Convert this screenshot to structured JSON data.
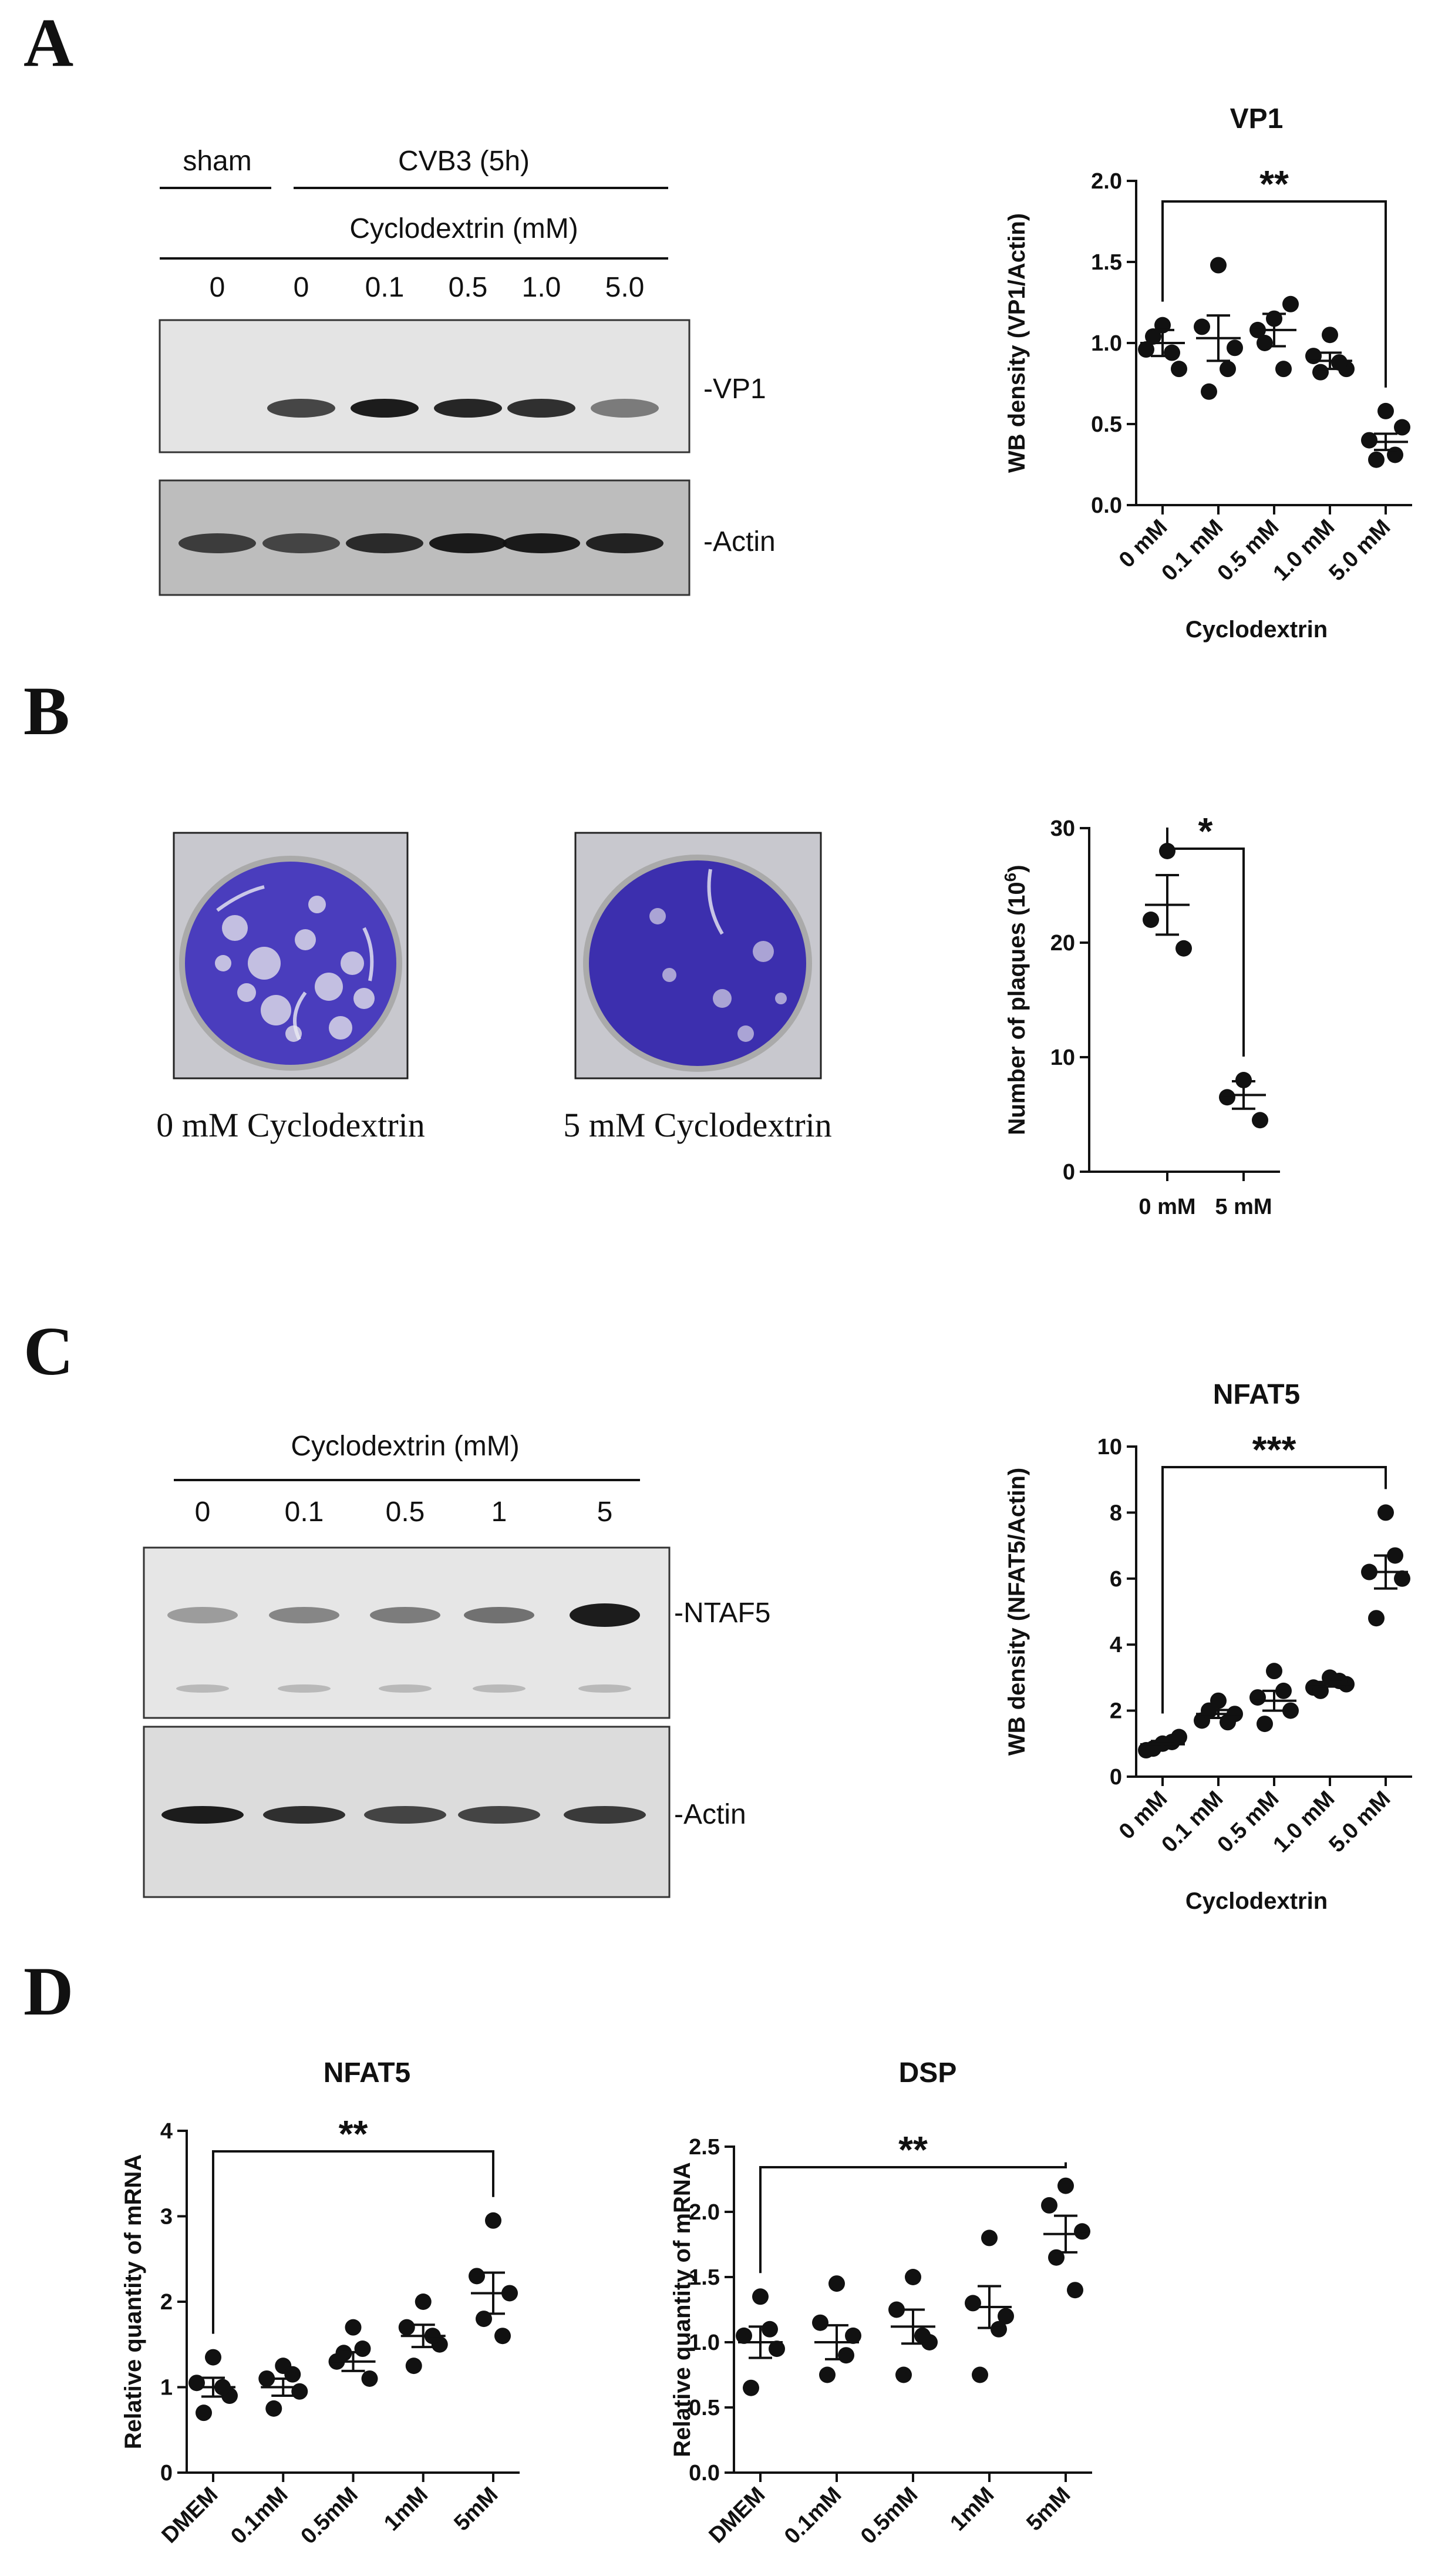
{
  "panels": {
    "A": "A",
    "B": "B",
    "C": "C",
    "D": "D"
  },
  "panel_a": {
    "group_sham": "sham",
    "group_cvb3": "CVB3 (5h)",
    "treatment": "Cyclodextrin (mM)",
    "lanes": [
      "0",
      "0",
      "0.1",
      "0.5",
      "1.0",
      "5.0"
    ],
    "band_vp1": "-VP1",
    "band_actin": "-Actin"
  },
  "panel_b": {
    "photo_left_caption": "0 mM Cyclodextrin",
    "photo_right_caption": "5 mM Cyclodextrin"
  },
  "panel_c": {
    "treatment": "Cyclodextrin (mM)",
    "lanes": [
      "0",
      "0.1",
      "0.5",
      "1",
      "5"
    ],
    "band_ntaf5": "-NTAF5",
    "band_actin": "-Actin"
  },
  "chart_data": [
    {
      "id": "vp1",
      "type": "scatter",
      "title": "VP1",
      "xlabel": "Cyclodextrin",
      "ylabel": "WB density (VP1/Actin)",
      "categories": [
        "0 mM",
        "0.1 mM",
        "0.5 mM",
        "1.0 mM",
        "5.0 mM"
      ],
      "ylim": [
        0,
        2.0
      ],
      "yticks": [
        "0.0",
        "0.5",
        "1.0",
        "1.5",
        "2.0"
      ],
      "points": [
        [
          1.11,
          0.96,
          0.84,
          1.04,
          0.94
        ],
        [
          1.48,
          1.1,
          0.97,
          0.7,
          0.84
        ],
        [
          1.15,
          1.08,
          1.24,
          1.0,
          0.84
        ],
        [
          1.05,
          0.92,
          0.84,
          0.82,
          0.88
        ],
        [
          0.58,
          0.4,
          0.48,
          0.28,
          0.31
        ]
      ],
      "means": [
        1.0,
        1.03,
        1.08,
        0.89,
        0.39
      ],
      "sem": [
        0.08,
        0.14,
        0.1,
        0.05,
        0.05
      ],
      "annotation": {
        "text": "**",
        "from": 0,
        "to": 4
      }
    },
    {
      "id": "plaques",
      "type": "scatter",
      "title": "",
      "xlabel": "",
      "ylabel": "Number of plaques (10",
      "ylabel_sup": "6",
      "ylabel_tail": ")",
      "categories": [
        "0 mM",
        "5 mM"
      ],
      "ylim": [
        0,
        30
      ],
      "yticks": [
        "0",
        "10",
        "20",
        "30"
      ],
      "points": [
        [
          28,
          22,
          19.5
        ],
        [
          8,
          6.5,
          4.5
        ]
      ],
      "means": [
        23.3,
        6.7
      ],
      "sem": [
        2.6,
        1.2
      ],
      "annotation": {
        "text": "*",
        "from": 0,
        "to": 1
      }
    },
    {
      "id": "nfat5_wb",
      "type": "scatter",
      "title": "NFAT5",
      "xlabel": "Cyclodextrin",
      "ylabel": "WB density (NFAT5/Actin)",
      "categories": [
        "0 mM",
        "0.1 mM",
        "0.5 mM",
        "1.0 mM",
        "5.0 mM"
      ],
      "ylim": [
        0,
        10
      ],
      "yticks": [
        "0",
        "2",
        "4",
        "6",
        "8",
        "10"
      ],
      "points": [
        [
          1.0,
          0.8,
          1.2,
          0.85,
          1.05
        ],
        [
          2.3,
          1.7,
          1.9,
          2.0,
          1.65
        ],
        [
          3.2,
          2.4,
          2.0,
          1.6,
          2.6
        ],
        [
          3.0,
          2.7,
          2.8,
          2.6,
          2.9
        ],
        [
          8.0,
          6.2,
          6.0,
          4.8,
          6.7
        ]
      ],
      "means": [
        0.98,
        1.9,
        2.3,
        2.8,
        6.2
      ],
      "sem": [
        0.1,
        0.12,
        0.3,
        0.07,
        0.5
      ],
      "annotation": {
        "text": "***",
        "from": 0,
        "to": 4
      }
    },
    {
      "id": "nfat5_mrna",
      "type": "scatter",
      "title": "NFAT5",
      "xlabel": "",
      "ylabel": "Relative quantity of mRNA",
      "categories": [
        "DMEM",
        "0.1mM",
        "0.5mM",
        "1mM",
        "5mM"
      ],
      "ylim": [
        0,
        4
      ],
      "yticks": [
        "0",
        "1",
        "2",
        "3",
        "4"
      ],
      "points": [
        [
          1.35,
          1.05,
          0.9,
          0.7,
          1.0
        ],
        [
          1.25,
          1.1,
          0.95,
          0.75,
          1.15
        ],
        [
          1.7,
          1.3,
          1.1,
          1.4,
          1.45
        ],
        [
          2.0,
          1.7,
          1.5,
          1.25,
          1.6
        ],
        [
          2.95,
          2.3,
          2.1,
          1.8,
          1.6
        ]
      ],
      "means": [
        1.0,
        1.0,
        1.3,
        1.6,
        2.1
      ],
      "sem": [
        0.11,
        0.1,
        0.11,
        0.13,
        0.24
      ],
      "annotation": {
        "text": "**",
        "from": 0,
        "to": 4
      }
    },
    {
      "id": "dsp_mrna",
      "type": "scatter",
      "title": "DSP",
      "xlabel": "",
      "ylabel": "Relative quantity of mRNA",
      "categories": [
        "DMEM",
        "0.1mM",
        "0.5mM",
        "1mM",
        "5mM"
      ],
      "ylim": [
        0,
        2.5
      ],
      "yticks": [
        "0.0",
        "0.5",
        "1.0",
        "1.5",
        "2.0",
        "2.5"
      ],
      "points": [
        [
          1.35,
          1.05,
          0.95,
          0.65,
          1.1
        ],
        [
          1.45,
          1.15,
          1.05,
          0.75,
          0.9
        ],
        [
          1.5,
          1.25,
          1.0,
          0.75,
          1.05
        ],
        [
          1.8,
          1.3,
          1.2,
          0.75,
          1.1
        ],
        [
          2.2,
          2.05,
          1.85,
          1.65,
          1.4
        ]
      ],
      "means": [
        1.0,
        1.0,
        1.12,
        1.27,
        1.83
      ],
      "sem": [
        0.12,
        0.13,
        0.13,
        0.16,
        0.14
      ],
      "annotation": {
        "text": "**",
        "from": 0,
        "to": 4
      }
    }
  ]
}
